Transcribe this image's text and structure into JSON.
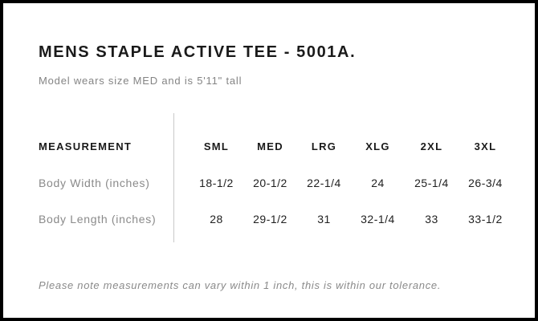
{
  "header": {
    "title": "MENS STAPLE ACTIVE TEE - 5001A.",
    "subtitle": "Model wears size MED and is 5'11\" tall"
  },
  "size_chart": {
    "measurement_header": "MEASUREMENT",
    "sizes": [
      "SML",
      "MED",
      "LRG",
      "XLG",
      "2XL",
      "3XL"
    ],
    "rows": [
      {
        "label": "Body Width (inches)",
        "values": [
          "18-1/2",
          "20-1/2",
          "22-1/4",
          "24",
          "25-1/4",
          "26-3/4"
        ]
      },
      {
        "label": "Body Length (inches)",
        "values": [
          "28",
          "29-1/2",
          "31",
          "32-1/4",
          "33",
          "33-1/2"
        ]
      }
    ]
  },
  "footer": {
    "note": "Please note measurements can vary within 1 inch, this is within our tolerance."
  },
  "colors": {
    "border": "#000000",
    "background": "#ffffff",
    "text_primary": "#1a1a1a",
    "text_secondary": "#8a8a8a",
    "divider": "#c9c9c9"
  },
  "chart_data": {
    "type": "table",
    "title": "MENS STAPLE ACTIVE TEE - 5001A.",
    "subtitle": "Model wears size MED and is 5'11\" tall",
    "columns": [
      "MEASUREMENT",
      "SML",
      "MED",
      "LRG",
      "XLG",
      "2XL",
      "3XL"
    ],
    "rows": [
      [
        "Body Width (inches)",
        "18-1/2",
        "20-1/2",
        "22-1/4",
        "24",
        "25-1/4",
        "26-3/4"
      ],
      [
        "Body Length (inches)",
        "28",
        "29-1/2",
        "31",
        "32-1/4",
        "33",
        "33-1/2"
      ]
    ],
    "note": "Please note measurements can vary within 1 inch, this is within our tolerance."
  }
}
